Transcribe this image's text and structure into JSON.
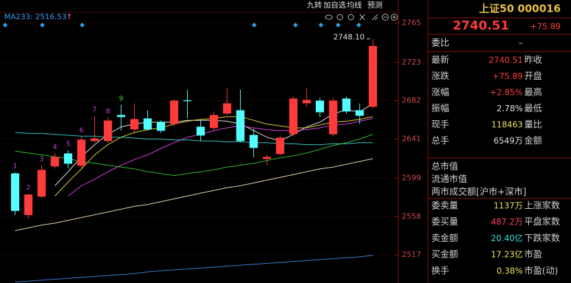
{
  "chart_data": {
    "type": "candlestick",
    "categories": [
      null,
      null,
      null,
      null,
      null,
      null,
      null,
      null,
      null,
      null,
      null,
      null,
      null,
      null,
      null,
      null,
      null,
      null,
      null,
      null,
      null,
      null,
      null,
      null,
      null,
      null,
      null,
      null
    ],
    "open": [
      2604.3,
      2559.6,
      2579.4,
      2611.7,
      2625.6,
      2612.4,
      2638.8,
      2638.8,
      2666.7,
      2651.3,
      2663,
      2659.4,
      2657.2,
      2682.5,
      2654.2,
      2652.7,
      2668.2,
      2671.8,
      2645.4,
      2619.7,
      2624.9,
      2646.1,
      2679.2,
      2682.1,
      2646.1,
      2684.3,
      2671.8,
      2675.5
    ],
    "high": [
      2605.5,
      2582.5,
      2613,
      2626,
      2629,
      2644,
      2666,
      2664,
      2677.7,
      2679,
      2671.8,
      2660.8,
      2683.6,
      2693.8,
      2660.8,
      2670.4,
      2695.3,
      2693.8,
      2652,
      2624.5,
      2645,
      2686.5,
      2695.3,
      2685,
      2685,
      2686.5,
      2679,
      2748.1
    ],
    "low": [
      2559.6,
      2556,
      2578,
      2609.5,
      2609.5,
      2610,
      2637.4,
      2637,
      2649.8,
      2648.3,
      2649.8,
      2647.6,
      2655,
      2663,
      2638.8,
      2651,
      2666.5,
      2637.4,
      2621.2,
      2613,
      2623.4,
      2643.9,
      2675.5,
      2664.5,
      2643.9,
      2668.2,
      2657.1,
      2674
    ],
    "close": [
      2564,
      2581.6,
      2608,
      2621.9,
      2614.6,
      2640.3,
      2641.7,
      2660.8,
      2664.5,
      2662.3,
      2651.3,
      2649.8,
      2682.1,
      2681.5,
      2644.7,
      2666.7,
      2679.2,
      2638.8,
      2631.5,
      2621.9,
      2642.5,
      2684.3,
      2682.8,
      2669.6,
      2682.1,
      2670.4,
      2665.9,
      2740.51
    ],
    "up_color": "#ff3b3b",
    "down_color": "#54ffff",
    "lines": [
      {
        "color": "#e8e8e8",
        "values": [
          null,
          null,
          null,
          2591,
          2606,
          2622,
          2635,
          2646,
          2654,
          2657,
          2659,
          2659,
          2659,
          2661,
          2661,
          2661,
          2660,
          2657,
          2650,
          2643,
          2639,
          2646,
          2654,
          2659,
          2668,
          2672,
          2670,
          2679
        ]
      },
      {
        "color": "#e6d23a",
        "values": [
          null,
          null,
          null,
          2580,
          2595,
          2609,
          2624,
          2635,
          2643,
          2648,
          2651,
          2653,
          2657,
          2660,
          2662,
          2663,
          2665,
          2665,
          2661,
          2657,
          2655,
          2653,
          2653,
          2656,
          2659,
          2660,
          2662,
          2665
        ]
      },
      {
        "color": "#e040e0",
        "values": [
          null,
          null,
          null,
          null,
          2580,
          2591,
          2598,
          2606,
          2613,
          2619,
          2624,
          2631,
          2637,
          2643,
          2646,
          2650,
          2653,
          2655,
          2653,
          2651,
          2650,
          2650,
          2651,
          2653,
          2656,
          2657,
          2660,
          2663
        ]
      },
      {
        "color": "#30c8c8",
        "values": [
          2648,
          2647,
          2647,
          2646,
          2645,
          2644,
          2644,
          2643,
          2643,
          2642,
          2641,
          2641,
          2640,
          2640,
          2639,
          2639,
          2638,
          2638,
          2637,
          2637,
          2636,
          2636,
          2635,
          2635,
          2636,
          2636,
          2637,
          2637
        ]
      },
      {
        "color": "#30c030",
        "values": [
          2628,
          2626,
          2624,
          2622,
          2620,
          2617,
          2615,
          2613,
          2611,
          2609,
          2606,
          2604,
          2602,
          2604,
          2606,
          2608,
          2611,
          2613,
          2615,
          2618,
          2621,
          2623,
          2626,
          2630,
          2634,
          2637,
          2641,
          2646
        ]
      },
      {
        "color": "#e8dcb0",
        "values": [
          2543,
          2546,
          2549,
          2551,
          2554,
          2557,
          2560,
          2563,
          2566,
          2569,
          2571,
          2574,
          2577,
          2580,
          2583,
          2586,
          2589,
          2591,
          2594,
          2597,
          2600,
          2603,
          2606,
          2609,
          2611,
          2614,
          2617,
          2620
        ]
      },
      {
        "color": "#3a7fd8",
        "values": [
          2488,
          2489,
          2490,
          2491,
          2492,
          2493,
          2494,
          2495,
          2496,
          2497,
          2499,
          2500,
          2501,
          2502,
          2503,
          2504,
          2505,
          2506,
          2507,
          2508,
          2509,
          2510,
          2511,
          2512,
          2513,
          2514,
          2515,
          2516.53
        ]
      }
    ],
    "count_labels": [
      {
        "text": "1",
        "color": "#c040d8"
      },
      {
        "text": "2",
        "color": "#c040d8"
      },
      {
        "text": "3",
        "color": "#c040d8"
      },
      {
        "text": "4",
        "color": "#c040d8"
      },
      {
        "text": "5",
        "color": "#c040d8"
      },
      {
        "text": "6",
        "color": "#c040d8"
      },
      {
        "text": "7",
        "color": "#c040d8"
      },
      {
        "text": "8",
        "color": "#c040d8"
      },
      {
        "text": "9",
        "color": "#30e030"
      },
      null,
      null,
      null,
      null,
      null,
      null,
      null,
      null,
      null,
      null,
      null,
      null,
      null,
      null,
      null,
      null,
      null,
      null,
      null
    ],
    "annotation": {
      "value": 2748.1,
      "label": "2748.10"
    },
    "ma_label": "MA233: 2516.53",
    "ma_arrow": "↑",
    "ylim": [
      2487,
      2775
    ],
    "yticks": [
      2765,
      2723,
      2682,
      2641,
      2599,
      2558,
      2517
    ],
    "grid": true
  },
  "toolbar": [
    "九转",
    "加自选",
    "均线",
    "预测"
  ],
  "panel": {
    "title": "上证50 000016",
    "price": "2740.51",
    "change": "+75.89",
    "weibi_label": "委比",
    "weibi": "–",
    "rows": [
      {
        "label": "最新",
        "value": "2740.51",
        "color": "#ff3b3b",
        "extra": "昨收"
      },
      {
        "label": "涨跌",
        "value": "+75.89",
        "color": "#ff3b3b",
        "extra": "开盘"
      },
      {
        "label": "涨幅",
        "value": "+2.85%",
        "color": "#ff3b3b",
        "extra": "最高"
      },
      {
        "label": "振幅",
        "value": "2.78%",
        "color": "#e0e0e0",
        "extra": "最低"
      },
      {
        "label": "现手",
        "value": "118463",
        "color": "#e8e060",
        "extra": "量比"
      },
      {
        "label": "总手",
        "value": "6549万",
        "color": "#e0e0e0",
        "extra": "金额"
      }
    ],
    "market": [
      "总市值",
      "流通市值",
      "两市成交额[沪市+深市]"
    ],
    "orders": [
      {
        "label": "委卖量",
        "value": "1137万",
        "color": "#e8e060",
        "extra": "上涨家数"
      },
      {
        "label": "委买量",
        "value": "487.2万",
        "color": "#ff4060",
        "extra": "平盘家数"
      },
      {
        "label": "卖金额",
        "value": "20.40亿",
        "color": "#40e0e0",
        "extra": "下跌家数"
      },
      {
        "label": "买金额",
        "value": "17.23亿",
        "color": "#e8e060",
        "extra": "市盈"
      },
      {
        "label": "换手",
        "value": "0.38%",
        "color": "#e8e060",
        "extra": "市盈(动)"
      }
    ]
  }
}
